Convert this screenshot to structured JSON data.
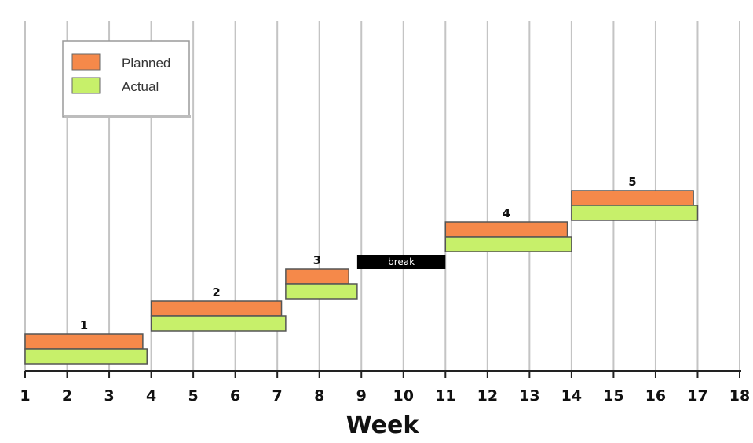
{
  "chart_data": {
    "type": "bar",
    "subtype": "gantt",
    "title": "",
    "xlabel": "Week",
    "ylabel": "",
    "xlim": [
      1,
      18
    ],
    "xticks": [
      "1",
      "2",
      "3",
      "4",
      "5",
      "6",
      "7",
      "8",
      "9",
      "10",
      "11",
      "12",
      "13",
      "14",
      "15",
      "16",
      "17",
      "18"
    ],
    "grid": true,
    "legend_position": "top-left",
    "legend": [
      {
        "name": "Planned",
        "color": "#f5894a"
      },
      {
        "name": "Actual",
        "color": "#c7f06a"
      }
    ],
    "series": [
      {
        "name": "Planned",
        "color": "#f5894a",
        "tasks": [
          {
            "label": "1",
            "start": 1,
            "end": 3.8
          },
          {
            "label": "2",
            "start": 4,
            "end": 7.1
          },
          {
            "label": "3",
            "start": 7.2,
            "end": 8.7
          },
          {
            "label": "4",
            "start": 11,
            "end": 13.9
          },
          {
            "label": "5",
            "start": 14,
            "end": 16.9
          }
        ]
      },
      {
        "name": "Actual",
        "color": "#c7f06a",
        "tasks": [
          {
            "label": "1",
            "start": 1,
            "end": 3.9
          },
          {
            "label": "2",
            "start": 4,
            "end": 7.2
          },
          {
            "label": "3",
            "start": 7.2,
            "end": 8.9
          },
          {
            "label": "4",
            "start": 11,
            "end": 14
          },
          {
            "label": "5",
            "start": 14,
            "end": 17
          }
        ]
      }
    ],
    "annotations": [
      {
        "label": "break",
        "start": 8.9,
        "end": 11,
        "color": "#000000"
      }
    ]
  }
}
